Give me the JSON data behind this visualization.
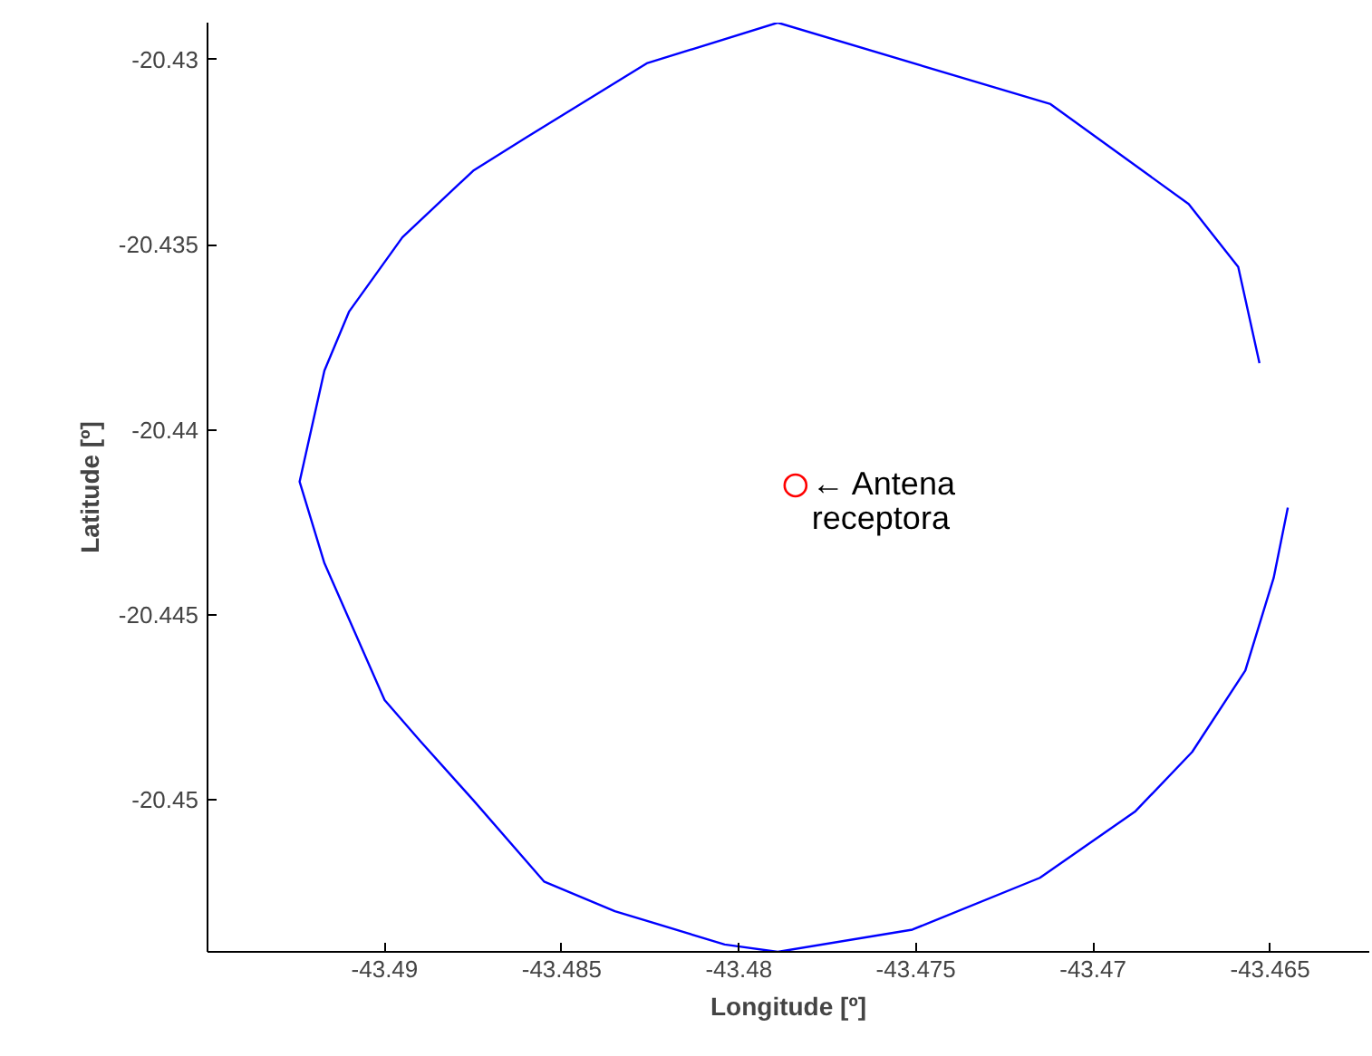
{
  "chart_data": {
    "type": "line",
    "xlabel": "Longitude [º]",
    "ylabel": "Latitude [º]",
    "xlim": [
      -43.495,
      -43.4622
    ],
    "ylim": [
      -20.4541,
      -20.429
    ],
    "xticks": [
      -43.49,
      -43.485,
      -43.48,
      -43.475,
      -43.47,
      -43.465
    ],
    "yticks": [
      -20.45,
      -20.445,
      -20.44,
      -20.435,
      -20.43
    ],
    "grid": false,
    "series": [
      {
        "color": "#0000ff",
        "marker": "none",
        "x": [
          -43.4653,
          -43.4659,
          -43.4673,
          -43.4712,
          -43.4789,
          -43.4826,
          -43.486,
          -43.4875,
          -43.4895,
          -43.491,
          -43.4917,
          -43.4924,
          -43.4917,
          -43.49,
          -43.489,
          -43.4875,
          -43.4855,
          -43.4835,
          -43.4804,
          -43.4789,
          -43.4751,
          -43.4715,
          -43.4688,
          -43.4672,
          -43.4657,
          -43.4649,
          -43.4645
        ],
        "values": [
          -20.4382,
          -20.4356,
          -20.4339,
          -20.4312,
          -20.429,
          -20.4301,
          -20.4321,
          -20.433,
          -20.4348,
          -20.4368,
          -20.4384,
          -20.4414,
          -20.4436,
          -20.4473,
          -20.4484,
          -20.45,
          -20.4522,
          -20.453,
          -20.4539,
          -20.4541,
          -20.4535,
          -20.4521,
          -20.4503,
          -20.4487,
          -20.4465,
          -20.444,
          -20.4421
        ]
      },
      {
        "type": "scatter",
        "color": "#ff0000",
        "marker": "circle",
        "x": [
          -43.4784
        ],
        "values": [
          -20.4415
        ]
      }
    ],
    "annotations": [
      {
        "text": "← Antena\nreceptora",
        "x": -43.4784,
        "y": -20.4415
      }
    ]
  }
}
